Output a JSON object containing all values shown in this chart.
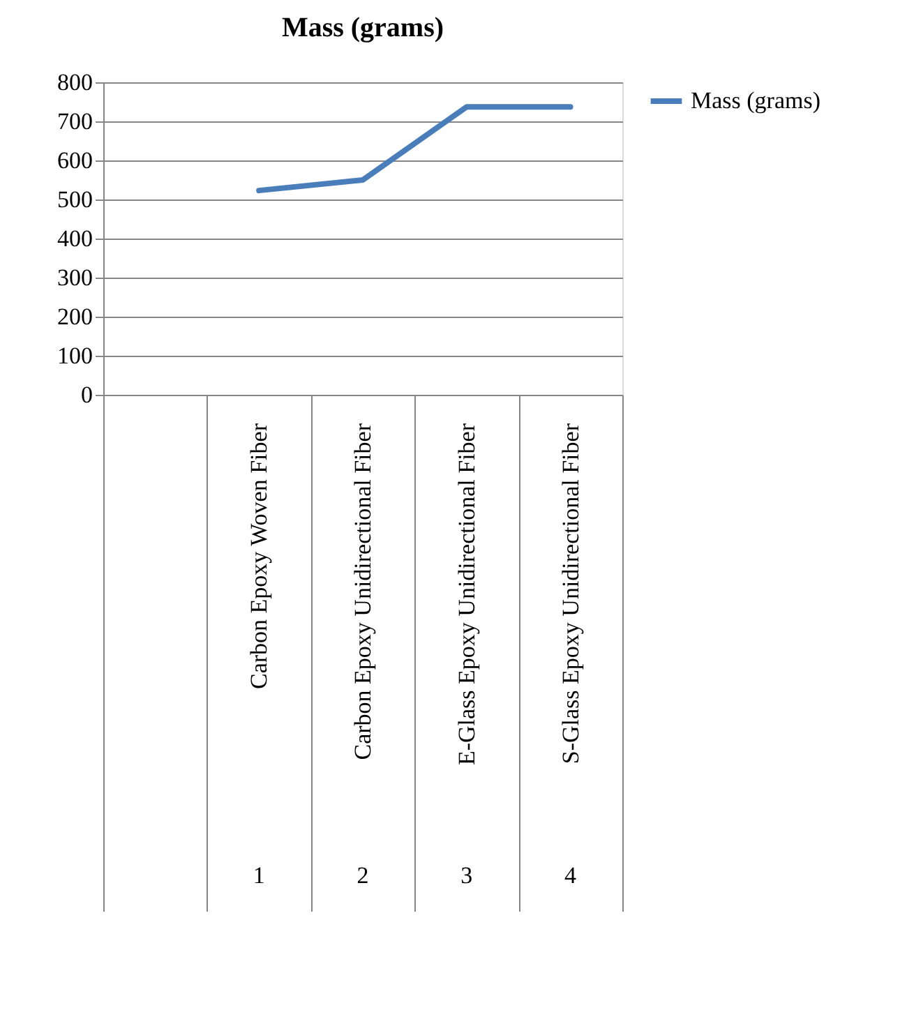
{
  "chart_data": {
    "type": "line",
    "title": "Mass (grams)",
    "categories": [
      null,
      "Carbon Epoxy Woven Fiber",
      "Carbon Epoxy Unidirectional Fiber",
      "E-Glass Epoxy Unidirectional Fiber",
      "S-Glass Epoxy Unidirectional Fiber"
    ],
    "series": [
      {
        "name": "Mass (grams)",
        "color": "#4a7ebb",
        "values": [
          null,
          523,
          550,
          737,
          737
        ]
      }
    ],
    "ylim": [
      0,
      800
    ],
    "yticks": [
      0,
      100,
      200,
      300,
      400,
      500,
      600,
      700,
      800
    ],
    "annotations": [
      "1",
      "2",
      "3",
      "4"
    ],
    "grid": "y",
    "legend": "right",
    "marker": "none",
    "line_style": "solid"
  }
}
